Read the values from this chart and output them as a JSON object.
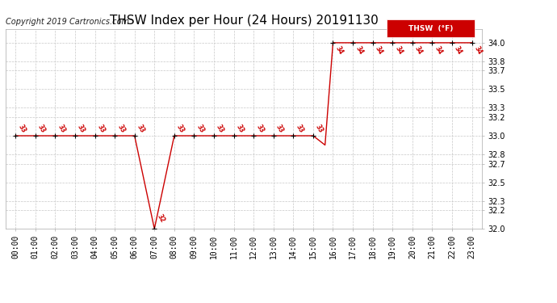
{
  "title": "THSW Index per Hour (24 Hours) 20191130",
  "copyright": "Copyright 2019 Cartronics.com",
  "legend_label": "THSW  (°F)",
  "x_labels": [
    "00:00",
    "01:00",
    "02:00",
    "03:00",
    "04:00",
    "05:00",
    "06:00",
    "07:00",
    "08:00",
    "09:00",
    "10:00",
    "11:00",
    "12:00",
    "13:00",
    "14:00",
    "15:00",
    "16:00",
    "17:00",
    "18:00",
    "19:00",
    "20:00",
    "21:00",
    "22:00",
    "23:00"
  ],
  "ylim_min": 32.0,
  "ylim_max": 34.15,
  "yticks": [
    32.0,
    32.2,
    32.3,
    32.5,
    32.7,
    32.8,
    33.0,
    33.2,
    33.3,
    33.5,
    33.7,
    33.8,
    34.0
  ],
  "line_color": "#cc0000",
  "marker_color": "#000000",
  "bg_color": "#ffffff",
  "grid_color": "#c8c8c8",
  "title_fontsize": 11,
  "copyright_fontsize": 7,
  "tick_fontsize": 7,
  "legend_bg": "#cc0000",
  "legend_fg": "#ffffff",
  "line_hours": [
    0,
    1,
    2,
    3,
    4,
    5,
    6,
    6.85,
    7.0,
    7.15,
    8,
    9,
    10,
    11,
    12,
    13,
    14,
    15.0,
    15.6,
    16,
    17,
    18,
    19,
    20,
    21,
    22,
    23
  ],
  "line_values": [
    33,
    33,
    33,
    33,
    33,
    33,
    33,
    32.15,
    32.0,
    32.15,
    33,
    33,
    33,
    33,
    33,
    33,
    33,
    33,
    32.9,
    34,
    34,
    34,
    34,
    34,
    34,
    34,
    34
  ],
  "marker_hours": [
    0,
    1,
    2,
    3,
    4,
    5,
    6,
    7,
    8,
    9,
    10,
    11,
    12,
    13,
    14,
    15,
    16,
    17,
    18,
    19,
    20,
    21,
    22,
    23
  ],
  "marker_values": [
    33,
    33,
    33,
    33,
    33,
    33,
    33,
    32,
    33,
    33,
    33,
    33,
    33,
    33,
    33,
    33,
    34,
    34,
    34,
    34,
    34,
    34,
    34,
    34
  ],
  "label_values": [
    33,
    33,
    33,
    33,
    33,
    33,
    33,
    32,
    33,
    33,
    33,
    33,
    33,
    33,
    33,
    33,
    34,
    34,
    34,
    34,
    34,
    34,
    34,
    34
  ]
}
